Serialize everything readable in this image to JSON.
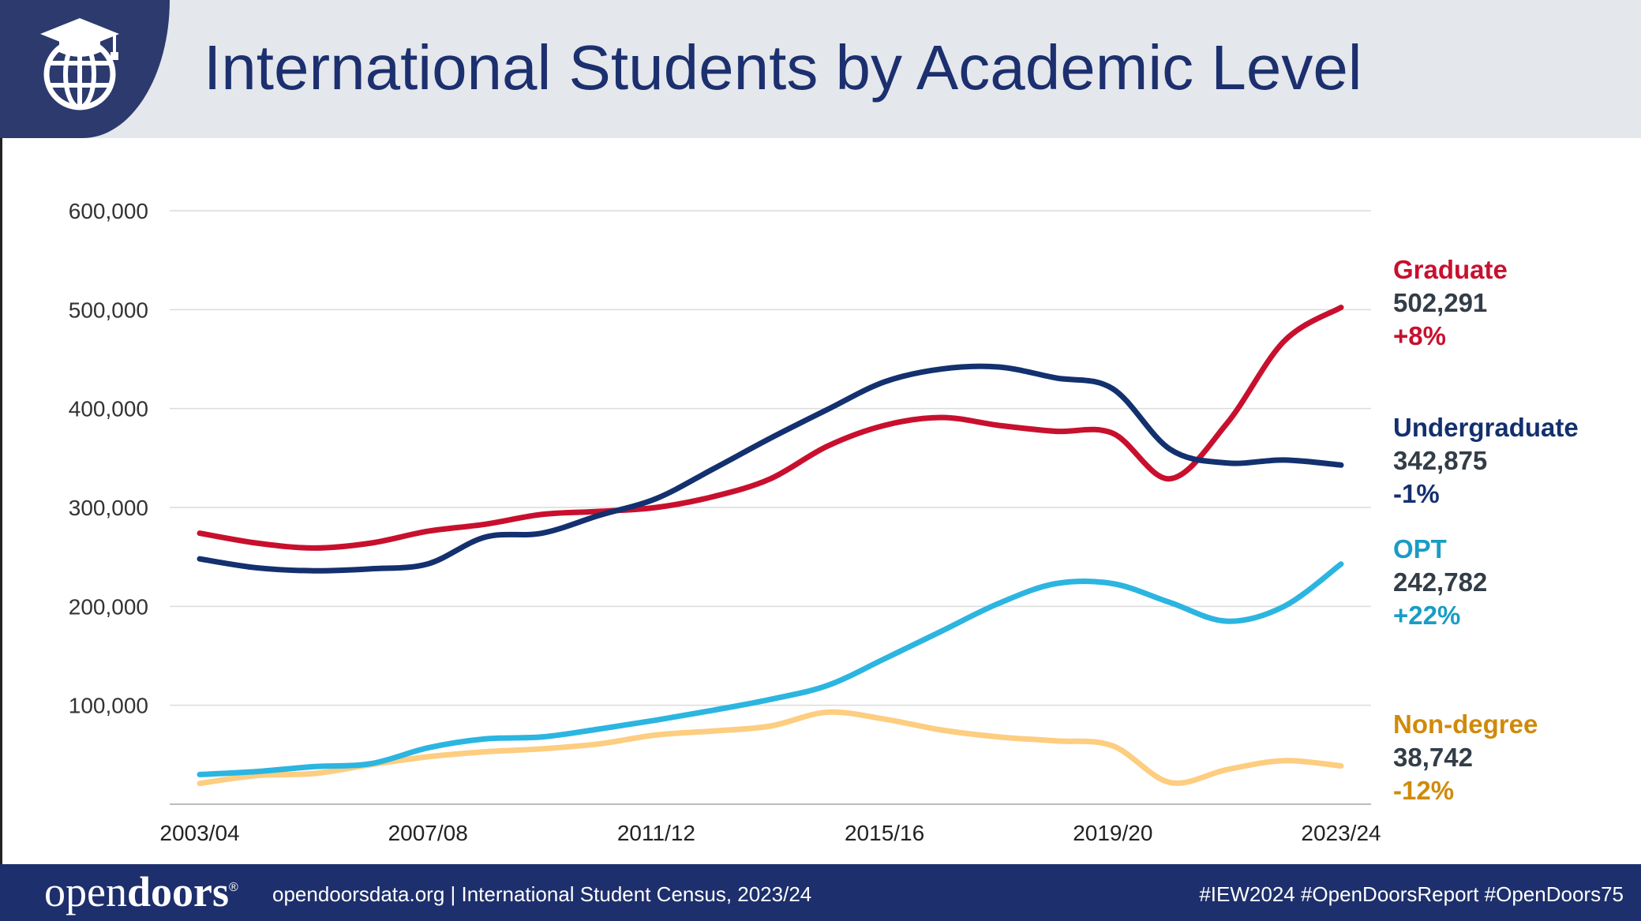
{
  "header": {
    "title": "International Students by Academic Level",
    "icon": "graduation-globe-icon"
  },
  "footer": {
    "brand_light": "open",
    "brand_bold": "doors",
    "brand_mark": "®",
    "source_text": "opendoorsdata.org  |  International Student Census, 2023/24",
    "hashtags": "#IEW2024   #OpenDoorsReport   #OpenDoors75"
  },
  "chart_data": {
    "type": "line",
    "title": "International Students by Academic Level",
    "x": [
      "2003/04",
      "2004/05",
      "2005/06",
      "2006/07",
      "2007/08",
      "2008/09",
      "2009/10",
      "2010/11",
      "2011/12",
      "2012/13",
      "2013/14",
      "2014/15",
      "2015/16",
      "2016/17",
      "2017/18",
      "2018/19",
      "2019/20",
      "2020/21",
      "2021/22",
      "2022/23",
      "2023/24"
    ],
    "x_tick_labels": [
      "2003/04",
      "2007/08",
      "2011/12",
      "2015/16",
      "2019/20",
      "2023/24"
    ],
    "ylim": [
      0,
      600000
    ],
    "y_ticks": [
      100000,
      200000,
      300000,
      400000,
      500000,
      600000
    ],
    "y_tick_labels": [
      "100,000",
      "200,000",
      "300,000",
      "400,000",
      "500,000",
      "600,000"
    ],
    "grid": true,
    "legend": "end-of-line labels (right)",
    "series": [
      {
        "name": "Graduate",
        "color": "#c8102e",
        "values": [
          274000,
          264000,
          259000,
          264000,
          276000,
          283000,
          293000,
          296000,
          300000,
          311000,
          329000,
          362000,
          383000,
          391000,
          383000,
          377000,
          375000,
          329000,
          385000,
          468000,
          502291
        ],
        "end_value": "502,291",
        "end_change": "+8%"
      },
      {
        "name": "Undergraduate",
        "color": "#13306f",
        "values": [
          248000,
          239000,
          236000,
          238000,
          243000,
          270000,
          274000,
          292000,
          309000,
          339000,
          370000,
          399000,
          427000,
          440000,
          442000,
          431000,
          420000,
          359000,
          345000,
          348000,
          342875
        ],
        "end_value": "342,875",
        "end_change": "-1%"
      },
      {
        "name": "OPT",
        "color": "#2bb5e0",
        "values": [
          30000,
          33000,
          38000,
          41000,
          57000,
          66000,
          68000,
          76000,
          85000,
          95000,
          106000,
          120000,
          147000,
          175000,
          203000,
          223000,
          223000,
          204000,
          185000,
          200000,
          242782
        ],
        "end_value": "242,782",
        "end_change": "+22%",
        "label_color": "#1a9cc4"
      },
      {
        "name": "Non-degree",
        "color": "#fdcd80",
        "values": [
          21000,
          29000,
          31000,
          40000,
          48000,
          53000,
          56000,
          61000,
          70000,
          74000,
          79000,
          93000,
          86000,
          75000,
          68000,
          64000,
          59000,
          22000,
          35000,
          44000,
          38742
        ],
        "end_value": "38,742",
        "end_change": "-12%",
        "label_color": "#d08a0a"
      }
    ]
  }
}
